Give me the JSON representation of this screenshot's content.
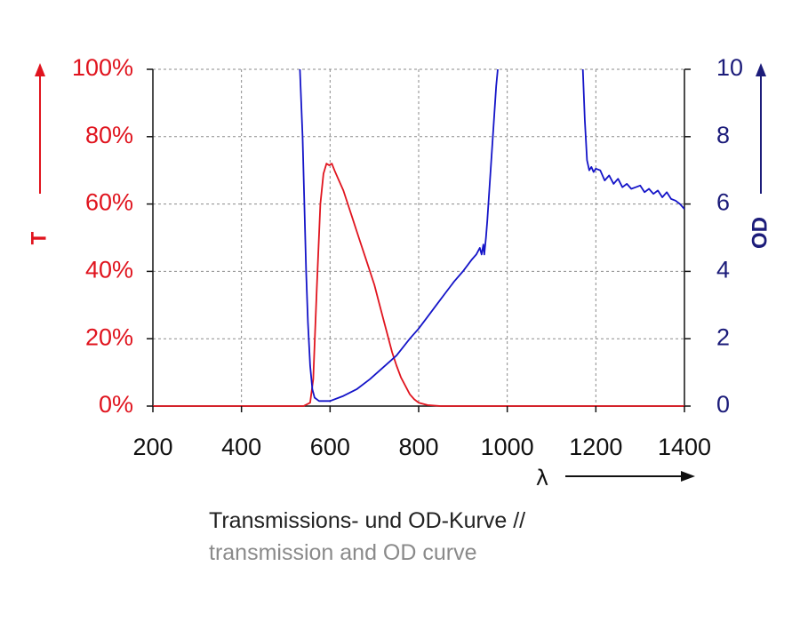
{
  "caption": {
    "line1": "Transmissions- und OD-Kurve //",
    "line2": "transmission and OD curve"
  },
  "chart_data": {
    "type": "line",
    "x_axis": {
      "label": "λ",
      "range": [
        200,
        1400
      ],
      "ticks": [
        200,
        400,
        600,
        800,
        1000,
        1200,
        1400
      ],
      "tick_labels": [
        "200",
        "400",
        "600",
        "800",
        "1000",
        "1200",
        "1400"
      ]
    },
    "y_axis_left": {
      "label": "T",
      "range": [
        0,
        100
      ],
      "ticks": [
        0,
        20,
        40,
        60,
        80,
        100
      ],
      "tick_labels": [
        "0%",
        "20%",
        "40%",
        "60%",
        "80%",
        "100%"
      ],
      "color": "#e0141e"
    },
    "y_axis_right": {
      "label": "OD",
      "range": [
        0,
        10
      ],
      "ticks": [
        0,
        2,
        4,
        6,
        8,
        10
      ],
      "tick_labels": [
        "0",
        "2",
        "4",
        "6",
        "8",
        "10"
      ],
      "color": "#1c1c7a"
    },
    "grid": true,
    "series": [
      {
        "axis": "left",
        "color": "#e0141e",
        "x": [
          200,
          540,
          555,
          562,
          570,
          578,
          585,
          592,
          598,
          604,
          610,
          620,
          630,
          640,
          650,
          660,
          670,
          680,
          690,
          700,
          710,
          720,
          730,
          740,
          750,
          760,
          770,
          780,
          790,
          800,
          820,
          850,
          900,
          1400
        ],
        "y": [
          0,
          0,
          1,
          8,
          35,
          60,
          69,
          72,
          71.5,
          72,
          70,
          67,
          64,
          60,
          56,
          52,
          48,
          44,
          40,
          36,
          31,
          26,
          21,
          16,
          12,
          8.5,
          6,
          3.5,
          2,
          1,
          0.3,
          0,
          0,
          0
        ]
      },
      {
        "axis": "right",
        "color": "#1414c8",
        "segments": [
          {
            "x": [
              530,
              532,
              535,
              538,
              540,
              543,
              546,
              550,
              555,
              560,
              565,
              575,
              600,
              630,
              660,
              690,
              720,
              750,
              780,
              800,
              820,
              840,
              860,
              880,
              900,
              920,
              930,
              938,
              942,
              946,
              948,
              952,
              955,
              960,
              965,
              970,
              975,
              980
            ],
            "y": [
              10.2,
              10,
              9,
              8,
              7,
              5.5,
              4,
              2.5,
              1.2,
              0.5,
              0.25,
              0.15,
              0.15,
              0.3,
              0.5,
              0.8,
              1.15,
              1.5,
              2,
              2.3,
              2.65,
              3,
              3.35,
              3.7,
              4,
              4.35,
              4.5,
              4.7,
              4.5,
              4.8,
              4.5,
              5,
              5.5,
              6.5,
              7.5,
              8.5,
              9.5,
              10.2
            ]
          },
          {
            "x": [
              1170,
              1175,
              1180,
              1185,
              1190,
              1195,
              1200,
              1210,
              1220,
              1230,
              1240,
              1250,
              1260,
              1270,
              1280,
              1290,
              1300,
              1310,
              1320,
              1330,
              1340,
              1350,
              1360,
              1370,
              1380,
              1390,
              1400
            ],
            "y": [
              10.2,
              8.5,
              7.3,
              7.0,
              7.1,
              6.95,
              7.05,
              7.0,
              6.7,
              6.85,
              6.6,
              6.75,
              6.5,
              6.6,
              6.45,
              6.5,
              6.55,
              6.35,
              6.45,
              6.3,
              6.4,
              6.2,
              6.35,
              6.15,
              6.1,
              6.0,
              5.85
            ]
          }
        ]
      }
    ]
  }
}
